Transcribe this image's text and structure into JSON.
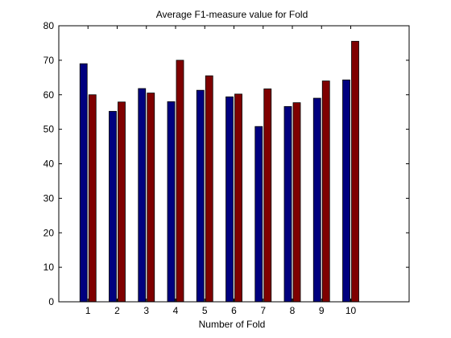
{
  "chart_data": {
    "type": "bar",
    "title": "Average F1-measure value for Fold",
    "xlabel": "Number of Fold",
    "ylabel": "",
    "categories": [
      "1",
      "2",
      "3",
      "4",
      "5",
      "6",
      "7",
      "8",
      "9",
      "10"
    ],
    "xlim": [
      0,
      12
    ],
    "ylim": [
      0,
      80
    ],
    "yticks": [
      0,
      10,
      20,
      30,
      40,
      50,
      60,
      70,
      80
    ],
    "grid": false,
    "legend": "none",
    "series": [
      {
        "values": [
          69,
          55.2,
          61.8,
          58,
          61.3,
          59.4,
          50.8,
          56.6,
          59,
          64.3
        ],
        "color": "#00007f"
      },
      {
        "values": [
          60,
          57.9,
          60.5,
          70,
          65.5,
          60.2,
          61.7,
          57.7,
          64,
          75.5
        ],
        "color": "#7f0000"
      }
    ]
  }
}
